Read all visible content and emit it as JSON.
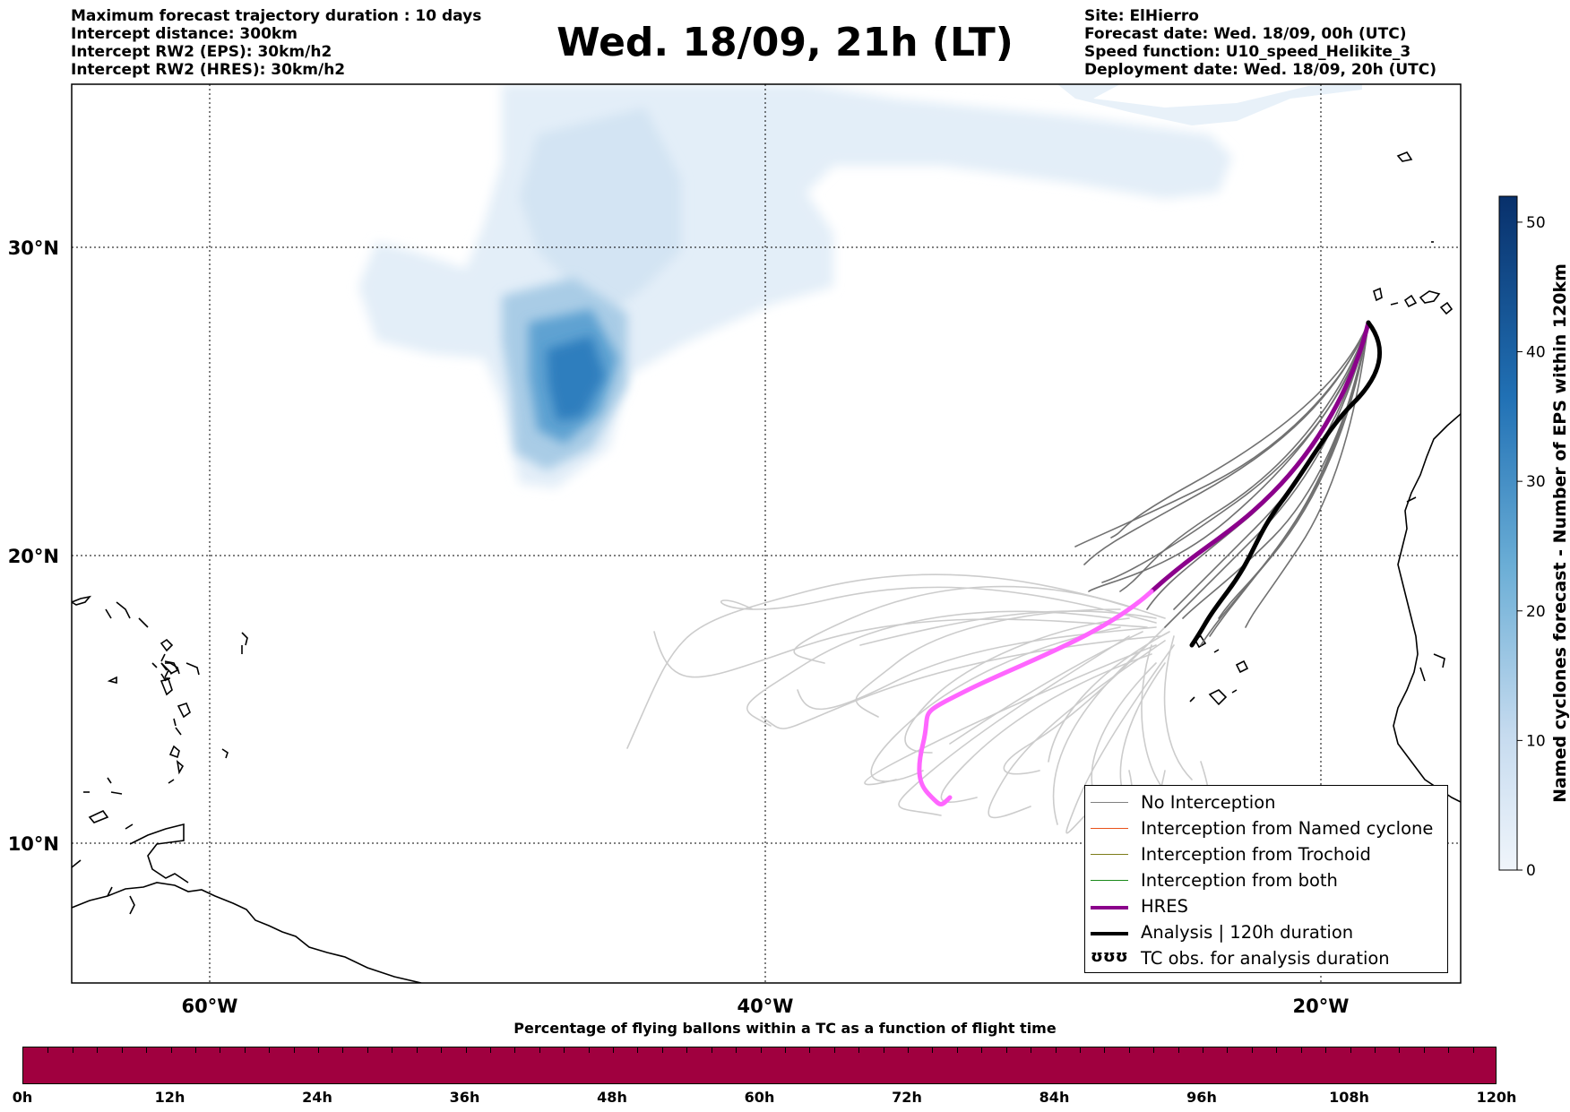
{
  "header_left": [
    "Maximum forecast trajectory duration : 10 days",
    "Intercept distance: 300km",
    "Intercept RW2 (EPS):  30km/h2",
    "Intercept RW2 (HRES): 30km/h2"
  ],
  "header_right": [
    "Site: ElHierro",
    "Forecast date: Wed. 18/09, 00h (UTC)",
    "Speed function: U10_speed_Helikite_3",
    "Deployment date: Wed. 18/09, 20h (UTC)"
  ],
  "title": "Wed. 18/09, 21h (LT)",
  "map": {
    "lon_labels": [
      "60°W",
      "40°W",
      "20°W"
    ],
    "lat_labels": [
      "30°N",
      "20°N",
      "10°N"
    ],
    "grid": true,
    "colors": {
      "no_interception": "#808080",
      "named_cyclone": "#e8521a",
      "trochoid": "#7d7d1a",
      "both": "#1a8a1a",
      "hres": "#8b008b",
      "hres_late": "#ff66ff",
      "analysis": "#000000",
      "trajectory_faded": "#cccccc"
    }
  },
  "legend": {
    "items": [
      {
        "label": "No Interception",
        "sample": "thin-gray"
      },
      {
        "label": "Interception from Named cyclone",
        "sample": "thin-orange"
      },
      {
        "label": "Interception from Trochoid",
        "sample": "thin-olive"
      },
      {
        "label": "Interception from both",
        "sample": "thin-green"
      },
      {
        "label": "HRES",
        "sample": "thick-purple"
      },
      {
        "label": "Analysis | 120h duration",
        "sample": "thick-black"
      },
      {
        "label": "TC obs. for analysis duration",
        "sample": "cyclone-glyphs"
      }
    ],
    "glyph": "ʊʊʊ"
  },
  "colorbar": {
    "label": "Named cyclones forecast - Number of EPS within 120km",
    "ticks": [
      "0",
      "10",
      "20",
      "30",
      "40",
      "50"
    ],
    "max": 52,
    "color_low": "#e8f0f9",
    "color_high": "#08306b"
  },
  "timebar": {
    "title": "Percentage of flying ballons within a TC as a function of flight time",
    "ticks": [
      "0h",
      "12h",
      "24h",
      "36h",
      "48h",
      "60h",
      "72h",
      "84h",
      "96h",
      "108h",
      "120h"
    ],
    "color": "#a0003f"
  }
}
